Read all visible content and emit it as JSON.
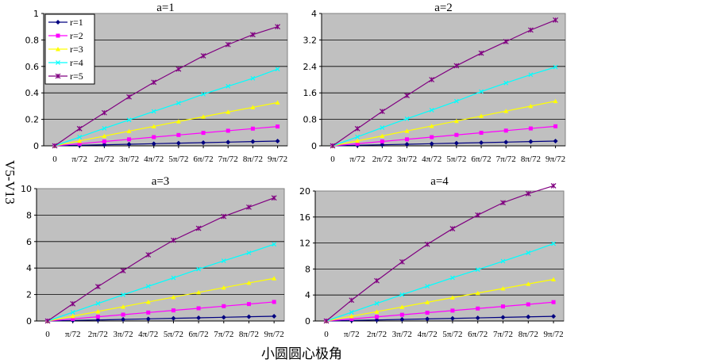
{
  "figure": {
    "ylabel": "V5-V13",
    "xlabel": "小圆圆心极角"
  },
  "chart_data": [
    {
      "type": "line",
      "title": "a=1",
      "categories": [
        "0",
        "π/72",
        "2π/72",
        "3π/72",
        "4π/72",
        "5π/72",
        "6π/72",
        "7π/72",
        "8π/72",
        "9π/72"
      ],
      "ylim": [
        0,
        1
      ],
      "yticks": [
        "0",
        "0.2",
        "0.4",
        "0.6",
        "0.8",
        "1"
      ],
      "grid": true,
      "legend": "top-left",
      "series": [
        {
          "name": "r=1",
          "color": "#000080",
          "marker": "diamond",
          "values": [
            0,
            0.004,
            0.008,
            0.012,
            0.016,
            0.02,
            0.024,
            0.028,
            0.032,
            0.036
          ]
        },
        {
          "name": "r=2",
          "color": "#ff00ff",
          "marker": "square",
          "values": [
            0,
            0.016,
            0.033,
            0.049,
            0.066,
            0.082,
            0.098,
            0.114,
            0.13,
            0.146
          ]
        },
        {
          "name": "r=3",
          "color": "#ffff00",
          "marker": "triangle",
          "values": [
            0,
            0.037,
            0.074,
            0.111,
            0.147,
            0.184,
            0.22,
            0.256,
            0.291,
            0.327
          ]
        },
        {
          "name": "r=4",
          "color": "#00ffff",
          "marker": "x",
          "values": [
            0,
            0.066,
            0.132,
            0.196,
            0.26,
            0.323,
            0.39,
            0.45,
            0.51,
            0.58
          ]
        },
        {
          "name": "r=5",
          "color": "#800080",
          "marker": "star",
          "values": [
            0,
            0.13,
            0.25,
            0.37,
            0.48,
            0.58,
            0.68,
            0.765,
            0.84,
            0.9
          ]
        }
      ]
    },
    {
      "type": "line",
      "title": "a=2",
      "categories": [
        "0",
        "π/72",
        "2π/72",
        "3π/72",
        "4π/72",
        "5π/72",
        "6π/72",
        "7π/72",
        "8π/72",
        "9π/72"
      ],
      "ylim": [
        0,
        4
      ],
      "yticks": [
        "0",
        "0.8",
        "1.6",
        "2.4",
        "3.2",
        "4"
      ],
      "grid": true,
      "series": [
        {
          "name": "r=1",
          "color": "#000080",
          "marker": "diamond",
          "values": [
            0,
            0.016,
            0.032,
            0.048,
            0.064,
            0.08,
            0.096,
            0.112,
            0.128,
            0.144
          ]
        },
        {
          "name": "r=2",
          "color": "#ff00ff",
          "marker": "square",
          "values": [
            0,
            0.066,
            0.132,
            0.197,
            0.263,
            0.33,
            0.395,
            0.46,
            0.525,
            0.59
          ]
        },
        {
          "name": "r=3",
          "color": "#ffff00",
          "marker": "triangle",
          "values": [
            0,
            0.15,
            0.3,
            0.45,
            0.6,
            0.75,
            0.9,
            1.05,
            1.2,
            1.35
          ]
        },
        {
          "name": "r=4",
          "color": "#00ffff",
          "marker": "x",
          "values": [
            0,
            0.27,
            0.55,
            0.82,
            1.08,
            1.35,
            1.64,
            1.9,
            2.15,
            2.38
          ]
        },
        {
          "name": "r=5",
          "color": "#800080",
          "marker": "star",
          "values": [
            0,
            0.52,
            1.04,
            1.52,
            2.0,
            2.42,
            2.8,
            3.15,
            3.5,
            3.8
          ]
        }
      ]
    },
    {
      "type": "line",
      "title": "a=3",
      "categories": [
        "0",
        "π/72",
        "2π/72",
        "3π/72",
        "4π/72",
        "5π/72",
        "6π/72",
        "7π/72",
        "8π/72",
        "9π/72"
      ],
      "ylim": [
        0,
        10
      ],
      "yticks": [
        "0",
        "2",
        "4",
        "6",
        "8",
        "10"
      ],
      "grid": true,
      "series": [
        {
          "name": "r=1",
          "color": "#000080",
          "marker": "diamond",
          "values": [
            0,
            0.04,
            0.08,
            0.12,
            0.16,
            0.2,
            0.24,
            0.28,
            0.32,
            0.36
          ]
        },
        {
          "name": "r=2",
          "color": "#ff00ff",
          "marker": "square",
          "values": [
            0,
            0.16,
            0.32,
            0.48,
            0.64,
            0.8,
            0.96,
            1.12,
            1.28,
            1.44
          ]
        },
        {
          "name": "r=3",
          "color": "#ffff00",
          "marker": "triangle",
          "values": [
            0,
            0.36,
            0.72,
            1.08,
            1.44,
            1.8,
            2.16,
            2.52,
            2.88,
            3.22
          ]
        },
        {
          "name": "r=4",
          "color": "#00ffff",
          "marker": "x",
          "values": [
            0,
            0.66,
            1.32,
            1.98,
            2.62,
            3.26,
            3.92,
            4.55,
            5.15,
            5.8
          ]
        },
        {
          "name": "r=5",
          "color": "#800080",
          "marker": "star",
          "values": [
            0,
            1.3,
            2.6,
            3.8,
            5.0,
            6.1,
            7.0,
            7.9,
            8.6,
            9.3
          ]
        }
      ]
    },
    {
      "type": "line",
      "title": "a=4",
      "categories": [
        "0",
        "π/72",
        "2π/72",
        "3π/72",
        "4π/72",
        "5π/72",
        "6π/72",
        "7π/72",
        "8π/72",
        "9π/72"
      ],
      "ylim": [
        0,
        20
      ],
      "yticks": [
        "0",
        "4",
        "8",
        "12",
        "16",
        "20"
      ],
      "grid": true,
      "series": [
        {
          "name": "r=1",
          "color": "#000080",
          "marker": "diamond",
          "values": [
            0,
            0.08,
            0.16,
            0.24,
            0.32,
            0.4,
            0.48,
            0.56,
            0.64,
            0.72
          ]
        },
        {
          "name": "r=2",
          "color": "#ff00ff",
          "marker": "square",
          "values": [
            0,
            0.32,
            0.64,
            0.96,
            1.28,
            1.6,
            1.92,
            2.24,
            2.56,
            2.9
          ]
        },
        {
          "name": "r=3",
          "color": "#ffff00",
          "marker": "triangle",
          "values": [
            0,
            0.72,
            1.44,
            2.16,
            2.88,
            3.6,
            4.3,
            5.0,
            5.7,
            6.4
          ]
        },
        {
          "name": "r=4",
          "color": "#00ffff",
          "marker": "x",
          "values": [
            0,
            1.35,
            2.7,
            4.05,
            5.35,
            6.65,
            7.9,
            9.2,
            10.5,
            11.9
          ]
        },
        {
          "name": "r=5",
          "color": "#800080",
          "marker": "star",
          "values": [
            0,
            3.2,
            6.2,
            9.1,
            11.8,
            14.2,
            16.3,
            18.2,
            19.6,
            20.8
          ]
        }
      ]
    }
  ]
}
